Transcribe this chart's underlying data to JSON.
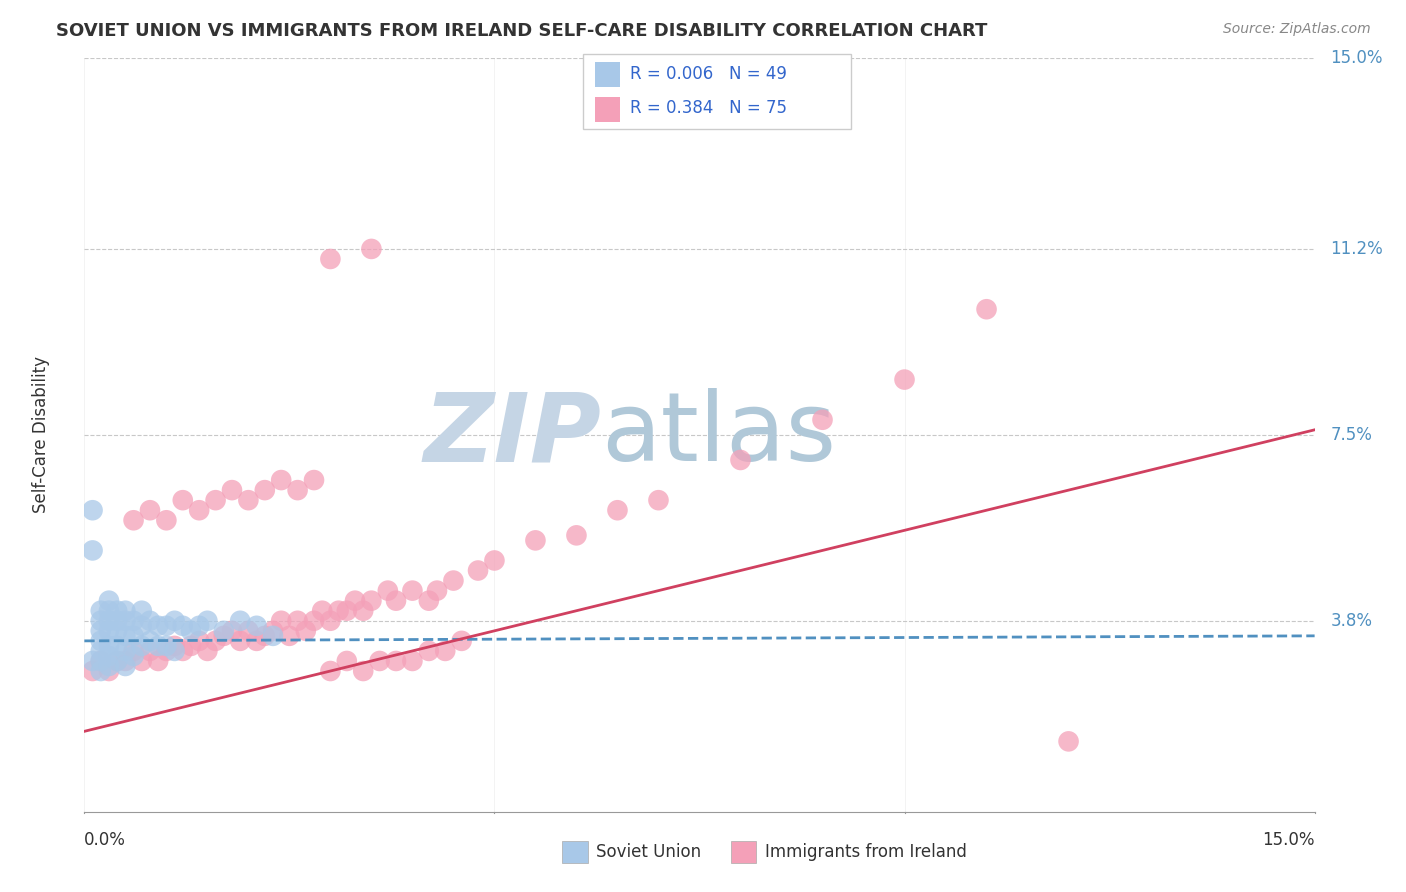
{
  "title": "SOVIET UNION VS IMMIGRANTS FROM IRELAND SELF-CARE DISABILITY CORRELATION CHART",
  "source": "Source: ZipAtlas.com",
  "ylabel": "Self-Care Disability",
  "xlim": [
    0.0,
    0.15
  ],
  "ylim": [
    0.0,
    0.15
  ],
  "ytick_labels": [
    "3.8%",
    "7.5%",
    "11.2%",
    "15.0%"
  ],
  "ytick_positions": [
    0.038,
    0.075,
    0.112,
    0.15
  ],
  "legend_r1": "R = 0.006",
  "legend_n1": "N = 49",
  "legend_r2": "R = 0.384",
  "legend_n2": "N = 75",
  "color_soviet": "#a8c8e8",
  "color_ireland": "#f4a0b8",
  "color_line_soviet": "#5090c0",
  "color_line_ireland": "#d04060",
  "watermark_zip": "ZIP",
  "watermark_atlas": "atlas",
  "watermark_color_zip": "#c5d5e5",
  "watermark_color_atlas": "#b0c8d8",
  "background_color": "#ffffff",
  "grid_color": "#c8c8c8",
  "ytick_color": "#5090c0",
  "xtick_color": "#333333",
  "title_color": "#333333",
  "source_color": "#888888",
  "legend_text_color": "#3366cc",
  "soviet_x": [
    0.001,
    0.001,
    0.001,
    0.002,
    0.002,
    0.002,
    0.002,
    0.002,
    0.002,
    0.002,
    0.003,
    0.003,
    0.003,
    0.003,
    0.003,
    0.003,
    0.003,
    0.004,
    0.004,
    0.004,
    0.004,
    0.004,
    0.005,
    0.005,
    0.005,
    0.005,
    0.005,
    0.006,
    0.006,
    0.006,
    0.007,
    0.007,
    0.007,
    0.008,
    0.008,
    0.009,
    0.009,
    0.01,
    0.01,
    0.011,
    0.011,
    0.012,
    0.013,
    0.014,
    0.015,
    0.017,
    0.019,
    0.021,
    0.023
  ],
  "soviet_y": [
    0.06,
    0.052,
    0.03,
    0.04,
    0.038,
    0.036,
    0.034,
    0.032,
    0.03,
    0.028,
    0.042,
    0.04,
    0.038,
    0.036,
    0.033,
    0.031,
    0.029,
    0.04,
    0.038,
    0.036,
    0.033,
    0.03,
    0.04,
    0.038,
    0.035,
    0.032,
    0.029,
    0.038,
    0.035,
    0.031,
    0.04,
    0.037,
    0.033,
    0.038,
    0.034,
    0.037,
    0.033,
    0.037,
    0.033,
    0.038,
    0.032,
    0.037,
    0.036,
    0.037,
    0.038,
    0.036,
    0.038,
    0.037,
    0.035
  ],
  "ireland_x": [
    0.001,
    0.002,
    0.003,
    0.004,
    0.005,
    0.006,
    0.007,
    0.008,
    0.009,
    0.01,
    0.011,
    0.012,
    0.013,
    0.014,
    0.015,
    0.016,
    0.017,
    0.018,
    0.019,
    0.02,
    0.021,
    0.022,
    0.023,
    0.024,
    0.025,
    0.026,
    0.027,
    0.028,
    0.029,
    0.03,
    0.031,
    0.032,
    0.033,
    0.034,
    0.035,
    0.037,
    0.038,
    0.04,
    0.042,
    0.043,
    0.045,
    0.048,
    0.05,
    0.055,
    0.06,
    0.065,
    0.07,
    0.08,
    0.09,
    0.1,
    0.006,
    0.008,
    0.01,
    0.012,
    0.014,
    0.016,
    0.018,
    0.02,
    0.022,
    0.024,
    0.026,
    0.028,
    0.03,
    0.032,
    0.034,
    0.036,
    0.038,
    0.04,
    0.042,
    0.044,
    0.046,
    0.11,
    0.03,
    0.035,
    0.12
  ],
  "ireland_y": [
    0.028,
    0.03,
    0.028,
    0.03,
    0.03,
    0.032,
    0.03,
    0.032,
    0.03,
    0.032,
    0.033,
    0.032,
    0.033,
    0.034,
    0.032,
    0.034,
    0.035,
    0.036,
    0.034,
    0.036,
    0.034,
    0.035,
    0.036,
    0.038,
    0.035,
    0.038,
    0.036,
    0.038,
    0.04,
    0.038,
    0.04,
    0.04,
    0.042,
    0.04,
    0.042,
    0.044,
    0.042,
    0.044,
    0.042,
    0.044,
    0.046,
    0.048,
    0.05,
    0.054,
    0.055,
    0.06,
    0.062,
    0.07,
    0.078,
    0.086,
    0.058,
    0.06,
    0.058,
    0.062,
    0.06,
    0.062,
    0.064,
    0.062,
    0.064,
    0.066,
    0.064,
    0.066,
    0.028,
    0.03,
    0.028,
    0.03,
    0.03,
    0.03,
    0.032,
    0.032,
    0.034,
    0.1,
    0.11,
    0.112,
    0.014
  ],
  "soviet_line_x": [
    0.0,
    0.15
  ],
  "soviet_line_y": [
    0.034,
    0.035
  ],
  "ireland_line_x": [
    0.0,
    0.15
  ],
  "ireland_line_y": [
    0.016,
    0.076
  ]
}
